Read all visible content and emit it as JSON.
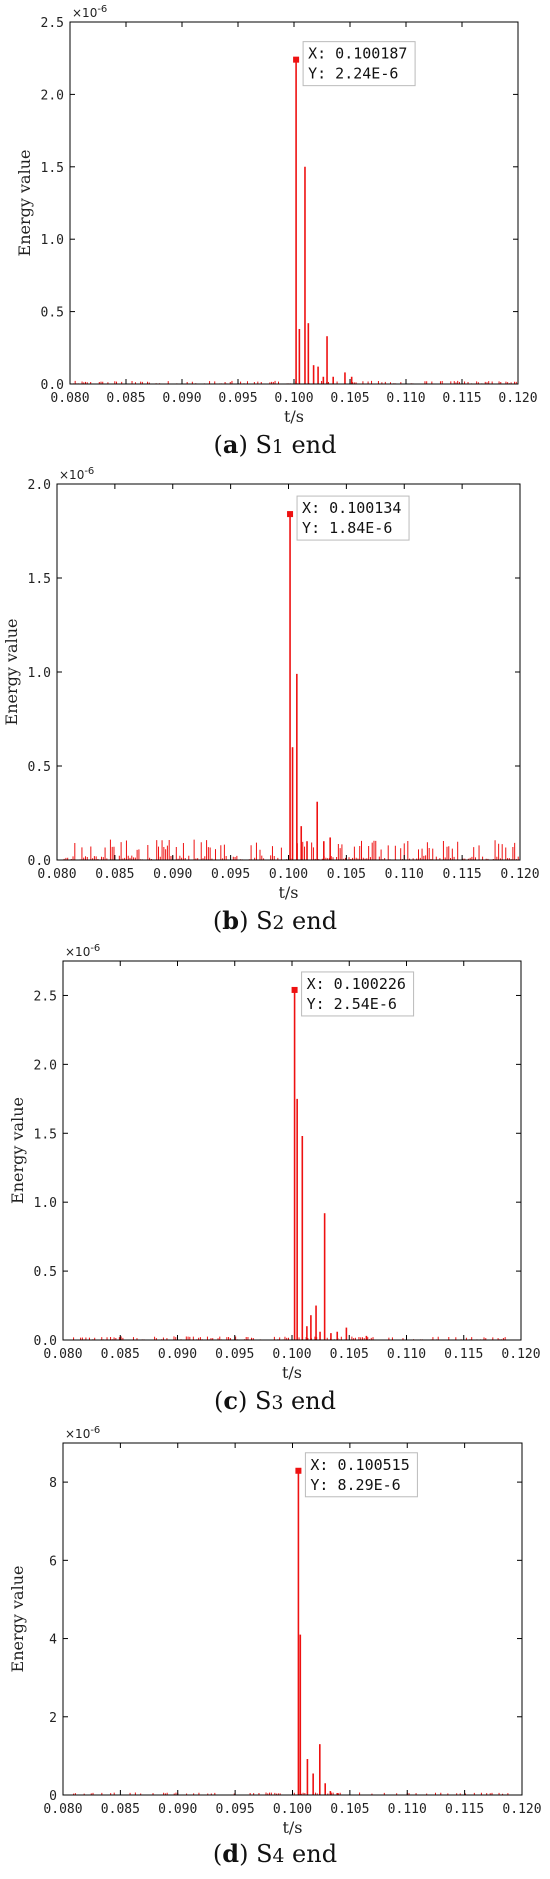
{
  "chart_data": [
    {
      "type": "line",
      "panel_label": "a",
      "caption_prefix": "S",
      "caption_sub": "1",
      "caption_suffix": " end",
      "xlabel": "t/s",
      "ylabel": "Energy value",
      "exponent_label": "×10",
      "exponent_power": "-6",
      "xlim": [
        0.08,
        0.12
      ],
      "ylim": [
        0,
        2.5
      ],
      "x_ticks": [
        "0.080",
        "0.085",
        "0.090",
        "0.095",
        "0.100",
        "0.105",
        "0.110",
        "0.115",
        "0.120"
      ],
      "y_ticks": [
        "0.0",
        "0.5",
        "1.0",
        "1.5",
        "2.0",
        "2.5"
      ],
      "color": "#ee1111",
      "noise_level": 0.01,
      "peaks": [
        {
          "x": 0.100187,
          "y": 2.24
        },
        {
          "x": 0.10048,
          "y": 0.38
        },
        {
          "x": 0.10098,
          "y": 1.5
        },
        {
          "x": 0.10128,
          "y": 0.42
        },
        {
          "x": 0.10175,
          "y": 0.13
        },
        {
          "x": 0.10215,
          "y": 0.12
        },
        {
          "x": 0.10262,
          "y": 0.05
        },
        {
          "x": 0.10295,
          "y": 0.33
        },
        {
          "x": 0.1035,
          "y": 0.05
        },
        {
          "x": 0.10455,
          "y": 0.08
        },
        {
          "x": 0.10515,
          "y": 0.05
        }
      ],
      "annotation": {
        "x": 0.100187,
        "y": 2.24,
        "x_text": "X: 0.100187",
        "y_text": "Y: 2.24E-6"
      }
    },
    {
      "type": "line",
      "panel_label": "b",
      "caption_prefix": "S",
      "caption_sub": "2",
      "caption_suffix": " end",
      "xlabel": "t/s",
      "ylabel": "Energy value",
      "exponent_label": "×10",
      "exponent_power": "-6",
      "xlim": [
        0.08,
        0.12
      ],
      "ylim": [
        0,
        2.0
      ],
      "x_ticks": [
        "0.080",
        "0.085",
        "0.090",
        "0.095",
        "0.100",
        "0.105",
        "0.110",
        "0.115",
        "0.120"
      ],
      "y_ticks": [
        "0.0",
        "0.5",
        "1.0",
        "1.5",
        "2.0"
      ],
      "color": "#ee1111",
      "noise_level": 0.05,
      "peaks": [
        {
          "x": 0.100134,
          "y": 1.84
        },
        {
          "x": 0.10035,
          "y": 0.6
        },
        {
          "x": 0.10072,
          "y": 0.99
        },
        {
          "x": 0.1011,
          "y": 0.18
        },
        {
          "x": 0.1016,
          "y": 0.1
        },
        {
          "x": 0.10248,
          "y": 0.31
        },
        {
          "x": 0.10305,
          "y": 0.1
        },
        {
          "x": 0.1036,
          "y": 0.12
        }
      ],
      "annotation": {
        "x": 0.100134,
        "y": 1.84,
        "x_text": "X: 0.100134",
        "y_text": "Y: 1.84E-6"
      }
    },
    {
      "type": "line",
      "panel_label": "c",
      "caption_prefix": "S",
      "caption_sub": "3",
      "caption_suffix": " end",
      "xlabel": "t/s",
      "ylabel": "Energy value",
      "exponent_label": "×10",
      "exponent_power": "-6",
      "xlim": [
        0.08,
        0.12
      ],
      "ylim": [
        0,
        2.75
      ],
      "x_ticks": [
        "0.080",
        "0.085",
        "0.090",
        "0.095",
        "0.100",
        "0.105",
        "0.110",
        "0.115",
        "0.120"
      ],
      "y_ticks": [
        "0.0",
        "0.5",
        "1.0",
        "1.5",
        "2.0",
        "2.5"
      ],
      "color": "#ee1111",
      "noise_level": 0.012,
      "peaks": [
        {
          "x": 0.100226,
          "y": 2.54
        },
        {
          "x": 0.10045,
          "y": 1.75
        },
        {
          "x": 0.1009,
          "y": 1.48
        },
        {
          "x": 0.1013,
          "y": 0.1
        },
        {
          "x": 0.10165,
          "y": 0.18
        },
        {
          "x": 0.1021,
          "y": 0.25
        },
        {
          "x": 0.10245,
          "y": 0.06
        },
        {
          "x": 0.10285,
          "y": 0.92
        },
        {
          "x": 0.1034,
          "y": 0.05
        },
        {
          "x": 0.10395,
          "y": 0.06
        },
        {
          "x": 0.10475,
          "y": 0.09
        },
        {
          "x": 0.1065,
          "y": 0.03
        }
      ],
      "annotation": {
        "x": 0.100226,
        "y": 2.54,
        "x_text": "X: 0.100226",
        "y_text": "Y: 2.54E-6"
      }
    },
    {
      "type": "line",
      "panel_label": "d",
      "caption_prefix": "S",
      "caption_sub": "4",
      "caption_suffix": " end",
      "xlabel": "t/s",
      "ylabel": "Energy value",
      "exponent_label": "×10",
      "exponent_power": "-6",
      "xlim": [
        0.08,
        0.12
      ],
      "ylim": [
        0,
        9
      ],
      "x_ticks": [
        "0.080",
        "0.085",
        "0.090",
        "0.095",
        "0.100",
        "0.105",
        "0.110",
        "0.115",
        "0.120"
      ],
      "y_ticks": [
        "0",
        "2",
        "4",
        "6",
        "8"
      ],
      "color": "#ee1111",
      "noise_level": 0.03,
      "peaks": [
        {
          "x": 0.100515,
          "y": 8.29
        },
        {
          "x": 0.10068,
          "y": 4.1
        },
        {
          "x": 0.1013,
          "y": 0.92
        },
        {
          "x": 0.1018,
          "y": 0.55
        },
        {
          "x": 0.10238,
          "y": 1.3
        },
        {
          "x": 0.10285,
          "y": 0.3
        },
        {
          "x": 0.1033,
          "y": 0.1
        },
        {
          "x": 0.1039,
          "y": 0.05
        }
      ],
      "annotation": {
        "x": 0.100515,
        "y": 8.29,
        "x_text": "X: 0.100515",
        "y_text": "Y: 8.29E-6"
      }
    }
  ]
}
